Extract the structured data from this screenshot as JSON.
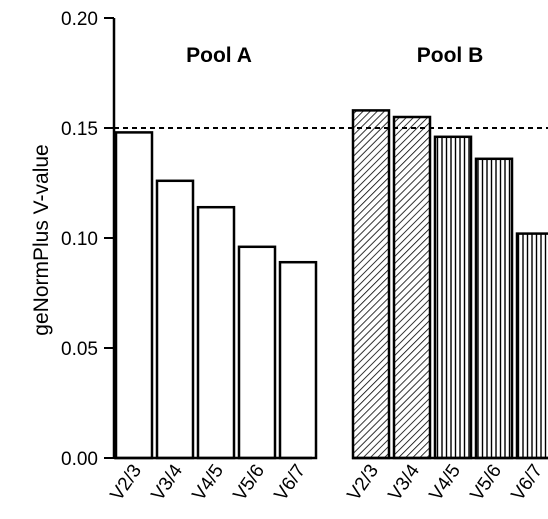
{
  "chart_data": {
    "type": "bar",
    "ylabel": "geNormPlus V-value",
    "ylim": [
      0,
      0.2
    ],
    "yticks": [
      "0.00",
      "0.05",
      "0.10",
      "0.15",
      "0.20"
    ],
    "threshold": 0.15,
    "groups": [
      {
        "name": "Pool A",
        "categories": [
          "V2/3",
          "V3/4",
          "V4/5",
          "V5/6",
          "V6/7"
        ],
        "values": [
          0.148,
          0.126,
          0.114,
          0.096,
          0.089
        ],
        "fills": [
          "white",
          "white",
          "white",
          "white",
          "white"
        ]
      },
      {
        "name": "Pool B",
        "categories": [
          "V2/3",
          "V3/4",
          "V4/5",
          "V5/6",
          "V6/7"
        ],
        "values": [
          0.158,
          0.155,
          0.146,
          0.136,
          0.102
        ],
        "fills": [
          "diagonal",
          "diagonal",
          "vertical",
          "vertical",
          "vertical"
        ]
      }
    ],
    "colors": {
      "bar_stroke": "#000000",
      "bar_fill": "#ffffff",
      "axis": "#000000"
    }
  }
}
